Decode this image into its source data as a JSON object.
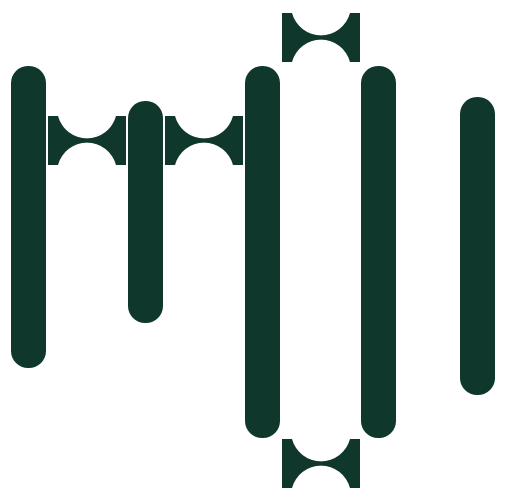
{
  "colors": {
    "background": "#ffffff",
    "shape": "#10372c"
  },
  "pillars": [
    {
      "id": "pillar-1"
    },
    {
      "id": "pillar-2"
    },
    {
      "id": "pillar-3"
    },
    {
      "id": "pillar-4"
    },
    {
      "id": "pillar-5"
    }
  ],
  "connectors": [
    {
      "id": "connector-1"
    },
    {
      "id": "connector-2"
    },
    {
      "id": "connector-top"
    },
    {
      "id": "connector-bottom"
    }
  ]
}
